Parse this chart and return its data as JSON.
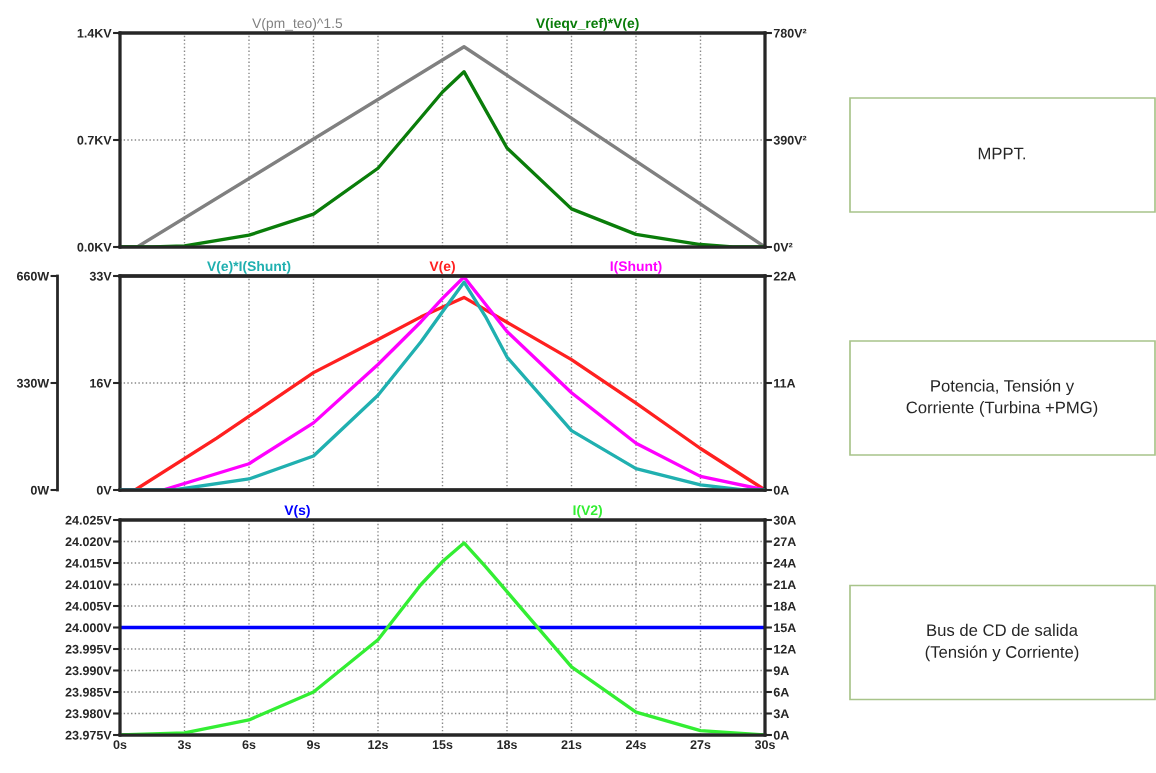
{
  "chart_data": [
    {
      "type": "line",
      "legend": "top",
      "grid": true,
      "tick_labels": "y",
      "line_style": "solid",
      "marker": "none",
      "xlim": [
        0,
        30
      ],
      "xticks": [
        {
          "value": 0,
          "label": null
        },
        {
          "value": 3,
          "label": null
        },
        {
          "value": 6,
          "label": null
        },
        {
          "value": 9,
          "label": null
        },
        {
          "value": 12,
          "label": null
        },
        {
          "value": 15,
          "label": null
        },
        {
          "value": 18,
          "label": null
        },
        {
          "value": 21,
          "label": null
        },
        {
          "value": 24,
          "label": null
        },
        {
          "value": 27,
          "label": null
        },
        {
          "value": 30,
          "label": null
        }
      ],
      "ylim": [
        0,
        1.4
      ],
      "yticks": [
        {
          "value": 0,
          "label": "0.0KV"
        },
        {
          "value": 0.7,
          "label": "0.7KV"
        },
        {
          "value": 1.4,
          "label": "1.4KV"
        }
      ],
      "y2lim": [
        0,
        780
      ],
      "y2ticks": [
        {
          "value": 0,
          "label": "0V²"
        },
        {
          "value": 390,
          "label": "390V²"
        },
        {
          "value": 780,
          "label": "780V²"
        }
      ],
      "annotations": [
        "MPPT."
      ],
      "series": [
        {
          "name": "V(pm_teo)^1.5",
          "color": "#808080",
          "x": [
            0,
            0.8,
            16,
            30
          ],
          "values": [
            0,
            0,
            1.31,
            0
          ]
        },
        {
          "name": "V(ieqv_ref)*V(e)",
          "color": "#0a7d0a",
          "axis": "y2",
          "x": [
            0,
            1.5,
            3,
            6,
            9,
            12,
            14,
            15,
            16,
            17,
            18,
            21,
            24,
            27,
            28.5,
            30
          ],
          "values": [
            0,
            0,
            4,
            43,
            120,
            287,
            472,
            565,
            639,
            500,
            361,
            139,
            46,
            9,
            0,
            0
          ]
        }
      ]
    },
    {
      "type": "line",
      "legend": "top",
      "grid": true,
      "tick_labels": "y",
      "line_style": "solid",
      "marker": "none",
      "xlim": [
        0,
        30
      ],
      "xticks": [
        {
          "value": 0,
          "label": null
        },
        {
          "value": 3,
          "label": null
        },
        {
          "value": 6,
          "label": null
        },
        {
          "value": 9,
          "label": null
        },
        {
          "value": 12,
          "label": null
        },
        {
          "value": 15,
          "label": null
        },
        {
          "value": 18,
          "label": null
        },
        {
          "value": 21,
          "label": null
        },
        {
          "value": 24,
          "label": null
        },
        {
          "value": 27,
          "label": null
        },
        {
          "value": 30,
          "label": null
        }
      ],
      "ylim": [
        0,
        33
      ],
      "yticks": [
        {
          "value": 0,
          "label": "0V"
        },
        {
          "value": 16.5,
          "label": "16V"
        },
        {
          "value": 33,
          "label": "33V"
        }
      ],
      "y2lim": [
        0,
        22
      ],
      "y2ticks": [
        {
          "value": 0,
          "label": "0A"
        },
        {
          "value": 11,
          "label": "11A"
        },
        {
          "value": 22,
          "label": "22A"
        }
      ],
      "y3lim": [
        0,
        660
      ],
      "y3ticks": [
        {
          "value": 0,
          "label": "0W"
        },
        {
          "value": 330,
          "label": "330W"
        },
        {
          "value": 660,
          "label": "660W"
        }
      ],
      "annotations": [
        "Potencia, Tensión y\nCorriente (Turbina +PMG)"
      ],
      "series": [
        {
          "name": "V(e)*I(Shunt)",
          "color": "#20b0b0",
          "axis": "y3",
          "x": [
            0,
            2.5,
            6,
            9,
            12,
            14,
            15,
            16,
            17,
            18,
            21,
            24,
            27,
            29,
            30
          ],
          "values": [
            0,
            0,
            34,
            105,
            292,
            457,
            550,
            641,
            535,
            410,
            183,
            66,
            16,
            0,
            0
          ]
        },
        {
          "name": "V(e)",
          "color": "#ff2020",
          "x": [
            0,
            0.7,
            4.5,
            9,
            12,
            14,
            16,
            21,
            24,
            27,
            30
          ],
          "values": [
            0,
            0,
            8.0,
            18.1,
            23.2,
            26.7,
            29.7,
            20.1,
            13.4,
            6.4,
            0
          ]
        },
        {
          "name": "I(Shunt)",
          "color": "#ff00ff",
          "axis": "y2",
          "x": [
            0,
            2,
            6,
            9,
            12,
            14,
            15,
            16,
            17,
            18,
            21,
            24,
            27,
            30
          ],
          "values": [
            0,
            0,
            2.7,
            6.9,
            12.9,
            17.3,
            19.7,
            21.9,
            19.1,
            16.3,
            10.0,
            4.8,
            1.4,
            0
          ]
        }
      ]
    },
    {
      "type": "line",
      "legend": "top",
      "grid": true,
      "line_style": "solid",
      "marker": "none",
      "xlim": [
        0,
        30
      ],
      "xticks": [
        {
          "value": 0,
          "label": "0s"
        },
        {
          "value": 3,
          "label": "3s"
        },
        {
          "value": 6,
          "label": "6s"
        },
        {
          "value": 9,
          "label": "9s"
        },
        {
          "value": 12,
          "label": "12s"
        },
        {
          "value": 15,
          "label": "15s"
        },
        {
          "value": 18,
          "label": "18s"
        },
        {
          "value": 21,
          "label": "21s"
        },
        {
          "value": 24,
          "label": "24s"
        },
        {
          "value": 27,
          "label": "27s"
        },
        {
          "value": 30,
          "label": "30s"
        }
      ],
      "ylim": [
        23.975,
        24.025
      ],
      "yticks": [
        {
          "value": 23.975,
          "label": "23.975V"
        },
        {
          "value": 23.98,
          "label": "23.980V"
        },
        {
          "value": 23.985,
          "label": "23.985V"
        },
        {
          "value": 23.99,
          "label": "23.990V"
        },
        {
          "value": 23.995,
          "label": "23.995V"
        },
        {
          "value": 24.0,
          "label": "24.000V"
        },
        {
          "value": 24.005,
          "label": "24.005V"
        },
        {
          "value": 24.01,
          "label": "24.010V"
        },
        {
          "value": 24.015,
          "label": "24.015V"
        },
        {
          "value": 24.02,
          "label": "24.020V"
        },
        {
          "value": 24.025,
          "label": "24.025V"
        }
      ],
      "y2lim": [
        0,
        30
      ],
      "y2ticks": [
        {
          "value": 0,
          "label": "0A"
        },
        {
          "value": 3,
          "label": "3A"
        },
        {
          "value": 6,
          "label": "6A"
        },
        {
          "value": 9,
          "label": "9A"
        },
        {
          "value": 12,
          "label": "12A"
        },
        {
          "value": 15,
          "label": "15A"
        },
        {
          "value": 18,
          "label": "18A"
        },
        {
          "value": 21,
          "label": "21A"
        },
        {
          "value": 24,
          "label": "24A"
        },
        {
          "value": 27,
          "label": "27A"
        },
        {
          "value": 30,
          "label": "30A"
        }
      ],
      "annotations": [
        "Bus de CD de salida\n(Tensión y Corriente)"
      ],
      "series": [
        {
          "name": "V(s)",
          "color": "#0000ff",
          "x": [
            0,
            30
          ],
          "values": [
            24.0,
            24.0
          ]
        },
        {
          "name": "I(V2)",
          "color": "#33ee33",
          "axis": "y2",
          "x": [
            0,
            3,
            6,
            9,
            12,
            14,
            15,
            16,
            17,
            18,
            21,
            24,
            27,
            30
          ],
          "values": [
            0,
            0.3,
            2.1,
            6.0,
            13.3,
            21.0,
            24.2,
            26.8,
            23.5,
            20.0,
            9.5,
            3.2,
            0.6,
            0
          ]
        }
      ]
    }
  ]
}
